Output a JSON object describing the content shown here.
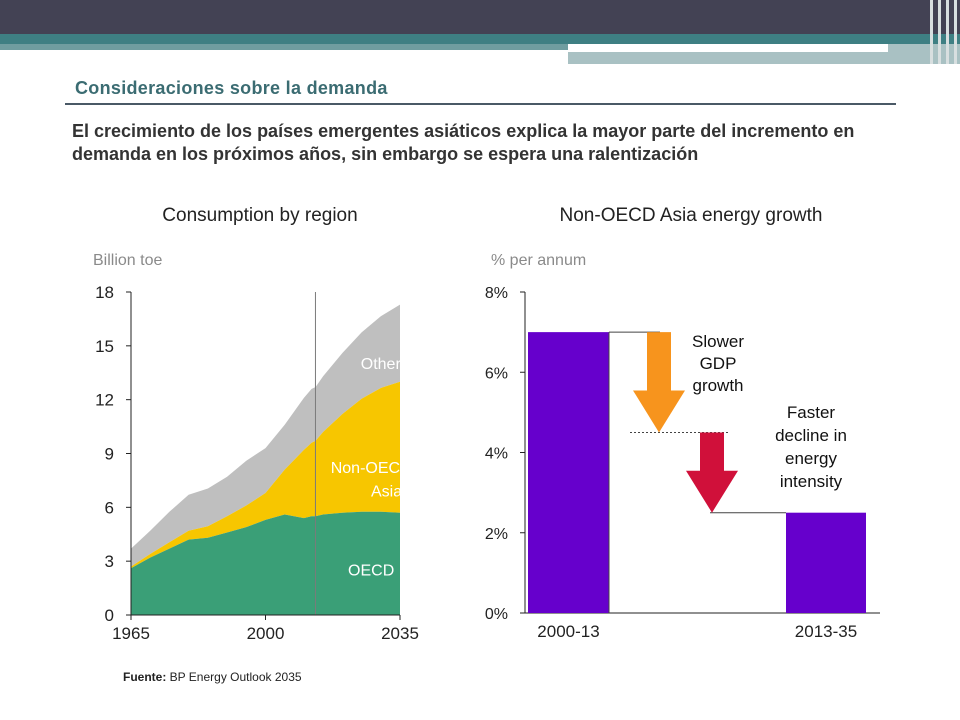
{
  "slide": {
    "section_title": "Consideraciones sobre la demanda",
    "headline": "El crecimiento de los países emergentes asiáticos explica la mayor parte del incremento en demanda en los próximos años, sin embargo se espera una ralentización",
    "source_label": "Fuente:",
    "source_text": " BP Energy Outlook 2035"
  },
  "chart_data": [
    {
      "type": "area",
      "title": "Consumption by region",
      "ylabel": "Billion toe",
      "ylim": [
        0,
        18
      ],
      "yticks": [
        "0",
        "3",
        "6",
        "9",
        "12",
        "15",
        "18"
      ],
      "xlim": [
        1965,
        2035
      ],
      "xticks": [
        "1965",
        "2000",
        "2035"
      ],
      "projection_start": 2013,
      "series_labels": [
        "Other",
        "Non-OECD Asia",
        "OECD"
      ],
      "years": [
        1965,
        1970,
        1975,
        1980,
        1985,
        1990,
        1995,
        2000,
        2005,
        2010,
        2012,
        2013,
        2015,
        2020,
        2025,
        2030,
        2035
      ],
      "oecd": [
        2.6,
        3.2,
        3.7,
        4.2,
        4.3,
        4.6,
        4.9,
        5.3,
        5.6,
        5.4,
        5.5,
        5.5,
        5.6,
        5.7,
        5.75,
        5.75,
        5.7
      ],
      "non_oecd_asia": [
        0.1,
        0.2,
        0.35,
        0.5,
        0.65,
        0.9,
        1.2,
        1.5,
        2.5,
        3.8,
        4.1,
        4.2,
        4.6,
        5.5,
        6.3,
        6.9,
        7.3
      ],
      "other": [
        1.0,
        1.3,
        1.7,
        2.0,
        2.1,
        2.2,
        2.5,
        2.5,
        2.5,
        2.9,
        3.0,
        3.0,
        3.1,
        3.4,
        3.7,
        4.0,
        4.3
      ],
      "colors": {
        "oecd": "#3a9f77",
        "non_oecd_asia": "#f7c600",
        "other": "#bfbfbf"
      }
    },
    {
      "type": "bar",
      "title": "Non-OECD Asia energy growth",
      "ylabel": "% per annum",
      "ylim": [
        0,
        8
      ],
      "yticks": [
        "0%",
        "2%",
        "4%",
        "6%",
        "8%"
      ],
      "categories": [
        "2000-13",
        "2013-35"
      ],
      "values": [
        7.0,
        2.5
      ],
      "bar_color": "#6600cc",
      "steps": [
        {
          "label": "Slower GDP growth",
          "lines": [
            "Slower",
            "GDP",
            "growth"
          ],
          "from": 7.0,
          "to": 4.5,
          "color": "#f7941d"
        },
        {
          "label": "Faster decline in energy intensity",
          "lines": [
            "Faster",
            "decline in",
            "energy",
            "intensity"
          ],
          "from": 4.5,
          "to": 2.5,
          "color": "#d0103a"
        }
      ]
    }
  ]
}
